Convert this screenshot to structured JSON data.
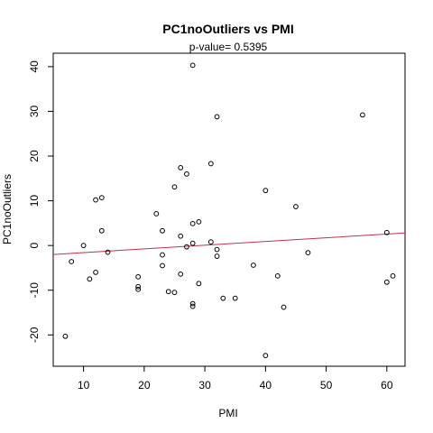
{
  "chart_data": {
    "type": "scatter",
    "title": "PC1noOutliers  vs  PMI",
    "subtitle": "p-value= 0.5395",
    "xlabel": "PMI",
    "ylabel": "PC1noOutliers",
    "xlim": [
      5,
      63
    ],
    "ylim": [
      -27,
      43
    ],
    "xticks": [
      10,
      20,
      30,
      40,
      50,
      60
    ],
    "yticks": [
      -20,
      -10,
      0,
      10,
      20,
      30,
      40
    ],
    "grid": false,
    "legend": "none",
    "point_color": "#000000",
    "fit_line": {
      "color": "#c0304a",
      "x": [
        5,
        63
      ],
      "y": [
        -2.0,
        2.8
      ]
    },
    "points": [
      [
        7,
        -20.3
      ],
      [
        8,
        -3.6
      ],
      [
        10,
        0
      ],
      [
        11,
        -7.5
      ],
      [
        12,
        10.2
      ],
      [
        12,
        -6
      ],
      [
        13,
        10.7
      ],
      [
        13,
        3.3
      ],
      [
        14,
        -1.5
      ],
      [
        19,
        -7
      ],
      [
        19,
        -9.2
      ],
      [
        19,
        -9.8
      ],
      [
        22,
        7.1
      ],
      [
        23,
        3.3
      ],
      [
        23,
        -2.1
      ],
      [
        23,
        -4.5
      ],
      [
        24,
        -10.3
      ],
      [
        25,
        13.1
      ],
      [
        25,
        -10.5
      ],
      [
        26,
        17.4
      ],
      [
        26,
        2.1
      ],
      [
        26,
        -6.4
      ],
      [
        27,
        16.0
      ],
      [
        27,
        -0.3
      ],
      [
        28,
        40.3
      ],
      [
        28,
        4.9
      ],
      [
        28,
        0.5
      ],
      [
        28,
        -13
      ],
      [
        28,
        -13.6
      ],
      [
        29,
        5.3
      ],
      [
        29,
        -8.5
      ],
      [
        31,
        18.3
      ],
      [
        31,
        0.8
      ],
      [
        32,
        28.8
      ],
      [
        32,
        -0.9
      ],
      [
        32,
        -2.4
      ],
      [
        33,
        -11.8
      ],
      [
        35,
        -11.8
      ],
      [
        38,
        -4.4
      ],
      [
        40,
        12.3
      ],
      [
        40,
        -24.6
      ],
      [
        42,
        -6.8
      ],
      [
        43,
        -13.8
      ],
      [
        45,
        8.7
      ],
      [
        47,
        -1.6
      ],
      [
        56,
        29.2
      ],
      [
        60,
        2.9
      ],
      [
        60,
        -8.2
      ],
      [
        61,
        -6.8
      ]
    ]
  }
}
